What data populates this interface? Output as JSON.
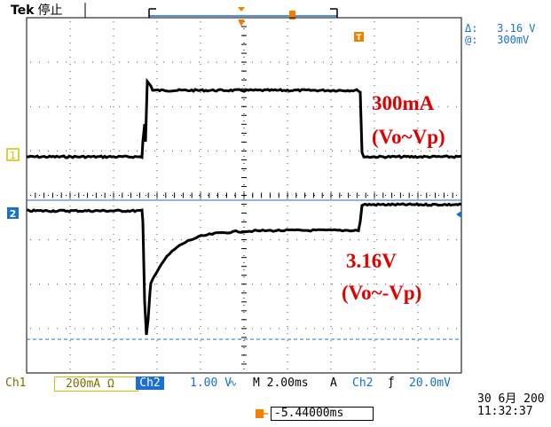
{
  "header": {
    "brand": "Tek",
    "acq_state": "停止",
    "delta_label": "Δ:",
    "delta_value": "3.16 V",
    "at_label": "@:",
    "at_value": "300mV"
  },
  "annotations": {
    "ch1_current": "300mA",
    "ch1_sense": "(Vo~Vp)",
    "ch2_voltage": "3.16V",
    "ch2_sense": "(Vo~-Vp)"
  },
  "status_bar": {
    "ch1_label": "Ch1",
    "ch1_scale": "200mA Ω",
    "ch2_label": "Ch2",
    "ch2_scale": "1.00 V",
    "timebase": "M 2.00ms",
    "trigger_mode": "A",
    "trigger_source": "Ch2",
    "trigger_slope": "ƒ",
    "trigger_level": "20.0mV"
  },
  "footer": {
    "date": "30 6月  200",
    "time": "11:32:37",
    "trigger_position": "-5.44000ms"
  },
  "markers": {
    "ch1_ref": "1",
    "ch2_ref": "2",
    "trigger_marker": "T"
  },
  "colors": {
    "ch1": "#d0c000",
    "ch2": "#1a6fd0",
    "trigger": "#f08000",
    "annotation": "#e00000",
    "trace": "#000000"
  }
}
